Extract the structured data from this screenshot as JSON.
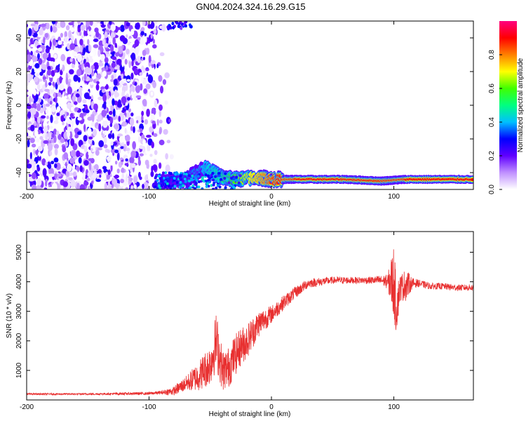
{
  "title": "GN04.2024.324.16.29.G15",
  "chart_data": [
    {
      "type": "heatmap",
      "xlabel": "Height of straight line (km)",
      "ylabel": "Frequency (Hz)",
      "xlim": [
        -200,
        165
      ],
      "ylim": [
        -50,
        50
      ],
      "x_ticks": [
        -200,
        -100,
        0,
        100
      ],
      "y_ticks": [
        -40,
        -20,
        0,
        20,
        40
      ],
      "colorbar": {
        "label": "Normalized spectral amplitude",
        "range": [
          0,
          1
        ],
        "ticks": [
          0.0,
          0.2,
          0.4,
          0.6,
          0.8
        ],
        "tick_labels": [
          "0.0",
          "0.2",
          "0.4",
          "0.6",
          "0.8"
        ],
        "colors": [
          "#ffffff",
          "#c090ff",
          "#6000ff",
          "#0000ff",
          "#00c0ff",
          "#00ff80",
          "#40ff00",
          "#ffff00",
          "#ff8000",
          "#ff0000",
          "#ff0080"
        ]
      },
      "noise_region": {
        "x": [
          -200,
          -85
        ],
        "y": [
          -50,
          50
        ],
        "typical_amplitude": 0.1
      },
      "carrier_track": [
        {
          "x": -90,
          "y": -46,
          "amplitude": 0.3
        },
        {
          "x": -70,
          "y": -44,
          "amplitude": 0.35
        },
        {
          "x": -55,
          "y": -37,
          "amplitude": 0.4
        },
        {
          "x": -40,
          "y": -43,
          "amplitude": 0.5
        },
        {
          "x": -30,
          "y": -44,
          "amplitude": 0.6
        },
        {
          "x": -10,
          "y": -43,
          "amplitude": 0.75
        },
        {
          "x": 0,
          "y": -44,
          "amplitude": 0.85
        },
        {
          "x": 20,
          "y": -44,
          "amplitude": 0.9
        },
        {
          "x": 60,
          "y": -44,
          "amplitude": 0.9
        },
        {
          "x": 90,
          "y": -45,
          "amplitude": 0.9
        },
        {
          "x": 110,
          "y": -44,
          "amplitude": 0.9
        },
        {
          "x": 165,
          "y": -44,
          "amplitude": 0.9
        }
      ]
    },
    {
      "type": "line",
      "xlabel": "Height of straight line (km)",
      "ylabel": "SNR (10 * v/v)",
      "xlim": [
        -200,
        165
      ],
      "ylim": [
        0,
        5700
      ],
      "x_ticks": [
        -200,
        -100,
        0,
        100
      ],
      "y_ticks": [
        1000,
        2000,
        3000,
        4000,
        5000
      ],
      "line_color": "#e83030",
      "series": [
        {
          "x": [
            -200,
            -150,
            -100,
            -90,
            -80,
            -70,
            -60,
            -50,
            -45,
            -40,
            -35,
            -30,
            -25,
            -20,
            -10,
            0,
            10,
            20,
            30,
            40,
            50,
            60,
            70,
            80,
            90,
            95,
            100,
            102,
            105,
            110,
            115,
            120,
            130,
            140,
            150,
            165
          ],
          "values": [
            200,
            200,
            220,
            250,
            300,
            550,
            800,
            1200,
            2000,
            1000,
            1100,
            1500,
            1800,
            2000,
            2600,
            2900,
            3300,
            3650,
            3950,
            4000,
            4050,
            4050,
            4050,
            4050,
            4050,
            4000,
            4000,
            3100,
            3800,
            3900,
            3950,
            3950,
            3850,
            3850,
            3800,
            3800
          ],
          "amplitude": [
            30,
            30,
            50,
            60,
            150,
            250,
            500,
            700,
            1000,
            700,
            700,
            700,
            650,
            600,
            450,
            300,
            250,
            200,
            160,
            140,
            120,
            120,
            110,
            120,
            160,
            250,
            1300,
            900,
            450,
            550,
            180,
            130,
            110,
            110,
            110,
            110
          ]
        }
      ]
    }
  ]
}
